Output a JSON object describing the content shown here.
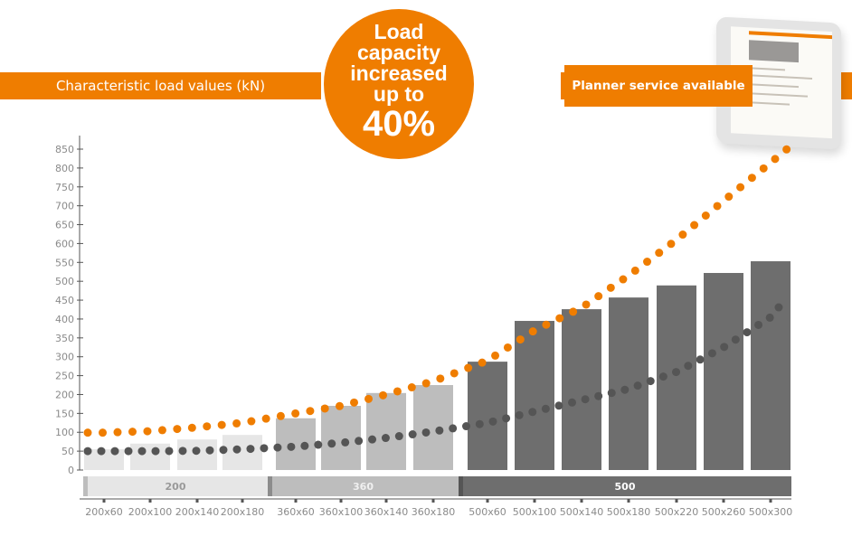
{
  "header": {
    "left_banner": "Characteristic load values (kN)",
    "right_banner": "Planner service available",
    "badge_lines": [
      "Load",
      "capacity",
      "increased",
      "up to"
    ],
    "badge_value": "40%"
  },
  "colors": {
    "orange": "#ef7d00",
    "dark_dots": "#555555",
    "group_200": "#e6e6e6",
    "group_360": "#bdbdbd",
    "group_500": "#6e6e6e"
  },
  "chart_data": {
    "type": "bar",
    "title": "Characteristic load values (kN)",
    "ylabel": "kN",
    "ylim": [
      0,
      850
    ],
    "yticks": [
      0,
      50,
      100,
      150,
      200,
      250,
      300,
      350,
      400,
      450,
      500,
      550,
      600,
      650,
      700,
      750,
      800,
      850
    ],
    "categories": [
      "200x60",
      "200x100",
      "200x140",
      "200x180",
      "360x60",
      "360x100",
      "360x140",
      "360x180",
      "500x60",
      "500x100",
      "500x140",
      "500x180",
      "500x220",
      "500x260",
      "500x300"
    ],
    "values": [
      55,
      70,
      81,
      93,
      137,
      170,
      204,
      225,
      287,
      395,
      426,
      457,
      489,
      522,
      553
    ],
    "groups": [
      {
        "label": "200",
        "start": 0,
        "end": 3
      },
      {
        "label": "360",
        "start": 4,
        "end": 7
      },
      {
        "label": "500",
        "start": 8,
        "end": 14
      }
    ],
    "series": [
      {
        "name": "orange trend (dotted)",
        "values": [
          99,
          103,
          113,
          125,
          150,
          170,
          200,
          235,
          290,
          370,
          430,
          515,
          610,
          713,
          814
        ],
        "end_value": 850
      },
      {
        "name": "grey trend (dotted)",
        "values": [
          50,
          50,
          51,
          55,
          62,
          72,
          85,
          102,
          125,
          155,
          185,
          215,
          260,
          325,
          405
        ],
        "end_value": 457
      }
    ],
    "grid": false
  }
}
